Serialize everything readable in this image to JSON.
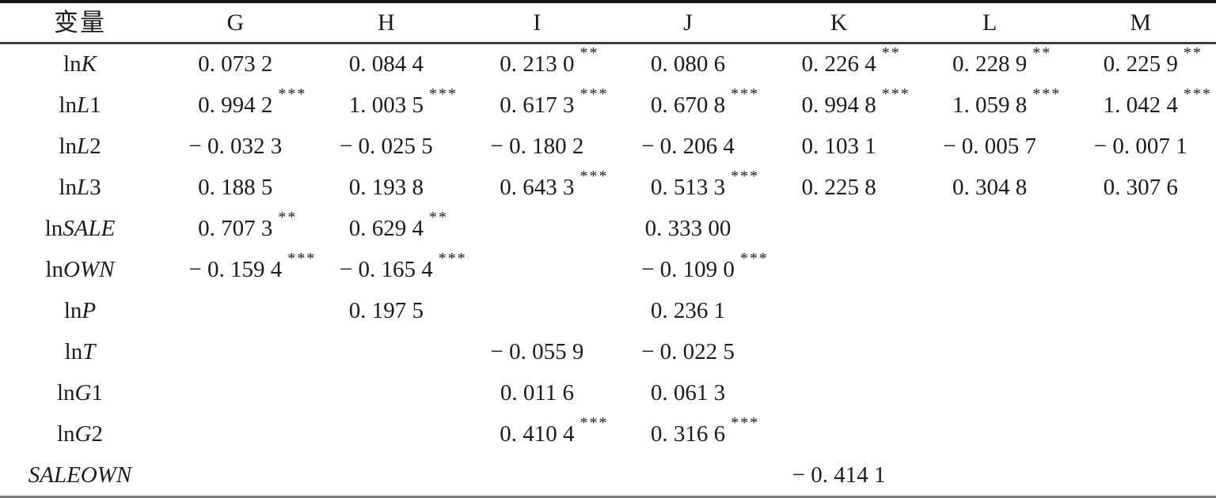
{
  "colors": {
    "text": "#1c1c1c",
    "rule_top": "#161616",
    "rule_header": "#3d3d3d",
    "rule_bottom": "#7b7b7b",
    "background": "#ffffff"
  },
  "table": {
    "header": {
      "variable": "变量",
      "columns": [
        "G",
        "H",
        "I",
        "J",
        "K",
        "L",
        "M"
      ]
    },
    "rows": [
      {
        "label": {
          "prefix": "ln",
          "it": "K",
          "suffix": ""
        },
        "cells": [
          {
            "n": "0. 073 2",
            "s": ""
          },
          {
            "n": "0. 084 4",
            "s": ""
          },
          {
            "n": "0. 213 0",
            "s": "**"
          },
          {
            "n": "0. 080 6",
            "s": ""
          },
          {
            "n": "0. 226 4",
            "s": "**"
          },
          {
            "n": "0. 228 9",
            "s": "**"
          },
          {
            "n": "0. 225 9",
            "s": "**"
          }
        ]
      },
      {
        "label": {
          "prefix": "ln",
          "it": "L",
          "suffix": "1"
        },
        "cells": [
          {
            "n": "0. 994 2",
            "s": "***"
          },
          {
            "n": "1. 003 5",
            "s": "***"
          },
          {
            "n": "0. 617 3",
            "s": "***"
          },
          {
            "n": "0. 670 8",
            "s": "***"
          },
          {
            "n": "0. 994 8",
            "s": "***"
          },
          {
            "n": "1. 059 8",
            "s": "***"
          },
          {
            "n": "1. 042 4",
            "s": "***"
          }
        ]
      },
      {
        "label": {
          "prefix": "ln",
          "it": "L",
          "suffix": "2"
        },
        "cells": [
          {
            "n": "− 0. 032 3",
            "s": ""
          },
          {
            "n": "− 0. 025 5",
            "s": ""
          },
          {
            "n": "− 0. 180 2",
            "s": ""
          },
          {
            "n": "− 0. 206 4",
            "s": ""
          },
          {
            "n": "0. 103 1",
            "s": ""
          },
          {
            "n": "− 0. 005 7",
            "s": ""
          },
          {
            "n": "− 0. 007 1",
            "s": ""
          }
        ]
      },
      {
        "label": {
          "prefix": "ln",
          "it": "L",
          "suffix": "3"
        },
        "cells": [
          {
            "n": "0. 188 5",
            "s": ""
          },
          {
            "n": "0. 193 8",
            "s": ""
          },
          {
            "n": "0. 643 3",
            "s": "***"
          },
          {
            "n": "0. 513 3",
            "s": "***"
          },
          {
            "n": "0. 225 8",
            "s": ""
          },
          {
            "n": "0. 304 8",
            "s": ""
          },
          {
            "n": "0. 307 6",
            "s": ""
          }
        ]
      },
      {
        "label": {
          "prefix": "ln",
          "it": "SALE",
          "suffix": ""
        },
        "cells": [
          {
            "n": "0. 707 3",
            "s": "**"
          },
          {
            "n": "0. 629 4",
            "s": "**"
          },
          null,
          {
            "n": "0. 333 00",
            "s": ""
          },
          null,
          null,
          null
        ]
      },
      {
        "label": {
          "prefix": "ln",
          "it": "OWN",
          "suffix": ""
        },
        "cells": [
          {
            "n": "− 0. 159 4",
            "s": "***"
          },
          {
            "n": "− 0. 165 4",
            "s": "***"
          },
          null,
          {
            "n": "− 0. 109 0",
            "s": "***"
          },
          null,
          null,
          null
        ]
      },
      {
        "label": {
          "prefix": "ln",
          "it": "P",
          "suffix": ""
        },
        "cells": [
          null,
          {
            "n": "0. 197 5",
            "s": ""
          },
          null,
          {
            "n": "0. 236 1",
            "s": ""
          },
          null,
          null,
          null
        ]
      },
      {
        "label": {
          "prefix": "ln",
          "it": "T",
          "suffix": ""
        },
        "cells": [
          null,
          null,
          {
            "n": "− 0. 055 9",
            "s": ""
          },
          {
            "n": "− 0. 022 5",
            "s": ""
          },
          null,
          null,
          null
        ]
      },
      {
        "label": {
          "prefix": "ln",
          "it": "G",
          "suffix": "1"
        },
        "cells": [
          null,
          null,
          {
            "n": "0. 011 6",
            "s": ""
          },
          {
            "n": "0. 061 3",
            "s": ""
          },
          null,
          null,
          null
        ]
      },
      {
        "label": {
          "prefix": "ln",
          "it": "G",
          "suffix": "2"
        },
        "cells": [
          null,
          null,
          {
            "n": "0. 410 4",
            "s": "***"
          },
          {
            "n": "0. 316 6",
            "s": "***"
          },
          null,
          null,
          null
        ]
      },
      {
        "label": {
          "prefix": "",
          "it": "SALEOWN",
          "suffix": ""
        },
        "cells": [
          null,
          null,
          null,
          null,
          {
            "n": "− 0. 414 1",
            "s": ""
          },
          null,
          null
        ]
      }
    ]
  }
}
